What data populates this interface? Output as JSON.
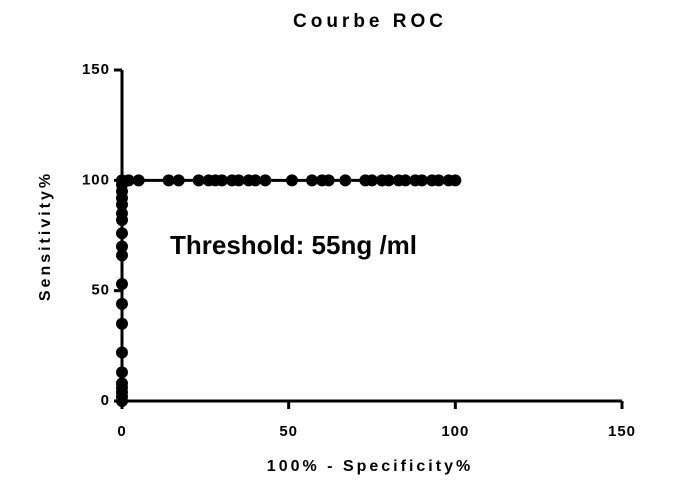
{
  "chart_data": {
    "type": "line",
    "title": "Courbe ROC",
    "x_label": "100% - Specificity%",
    "y_label": "Sensitivity%",
    "annotation": "Threshold: 55ng /ml",
    "x": [
      0,
      0,
      0,
      0,
      0,
      0,
      0,
      0,
      0,
      0,
      0,
      0,
      0,
      0,
      0,
      0,
      0,
      0,
      0,
      0,
      2,
      5,
      14,
      17,
      23,
      26,
      28,
      30,
      33,
      35,
      38,
      40,
      43,
      51,
      57,
      60,
      62,
      67,
      73,
      75,
      78,
      80,
      83,
      85,
      88,
      90,
      93,
      95,
      98,
      100
    ],
    "values": [
      0,
      2,
      4,
      6,
      8,
      13,
      22,
      35,
      44,
      53,
      66,
      70,
      76,
      82,
      85,
      89,
      92,
      95,
      98,
      100,
      100,
      100,
      100,
      100,
      100,
      100,
      100,
      100,
      100,
      100,
      100,
      100,
      100,
      100,
      100,
      100,
      100,
      100,
      100,
      100,
      100,
      100,
      100,
      100,
      100,
      100,
      100,
      100,
      100,
      100
    ],
    "color": "#000000",
    "xlim": [
      0,
      150
    ],
    "xticks": [
      0,
      50,
      100,
      150
    ],
    "ylim": [
      0,
      150
    ],
    "yticks": [
      0,
      50,
      100,
      150
    ],
    "grid": false
  }
}
